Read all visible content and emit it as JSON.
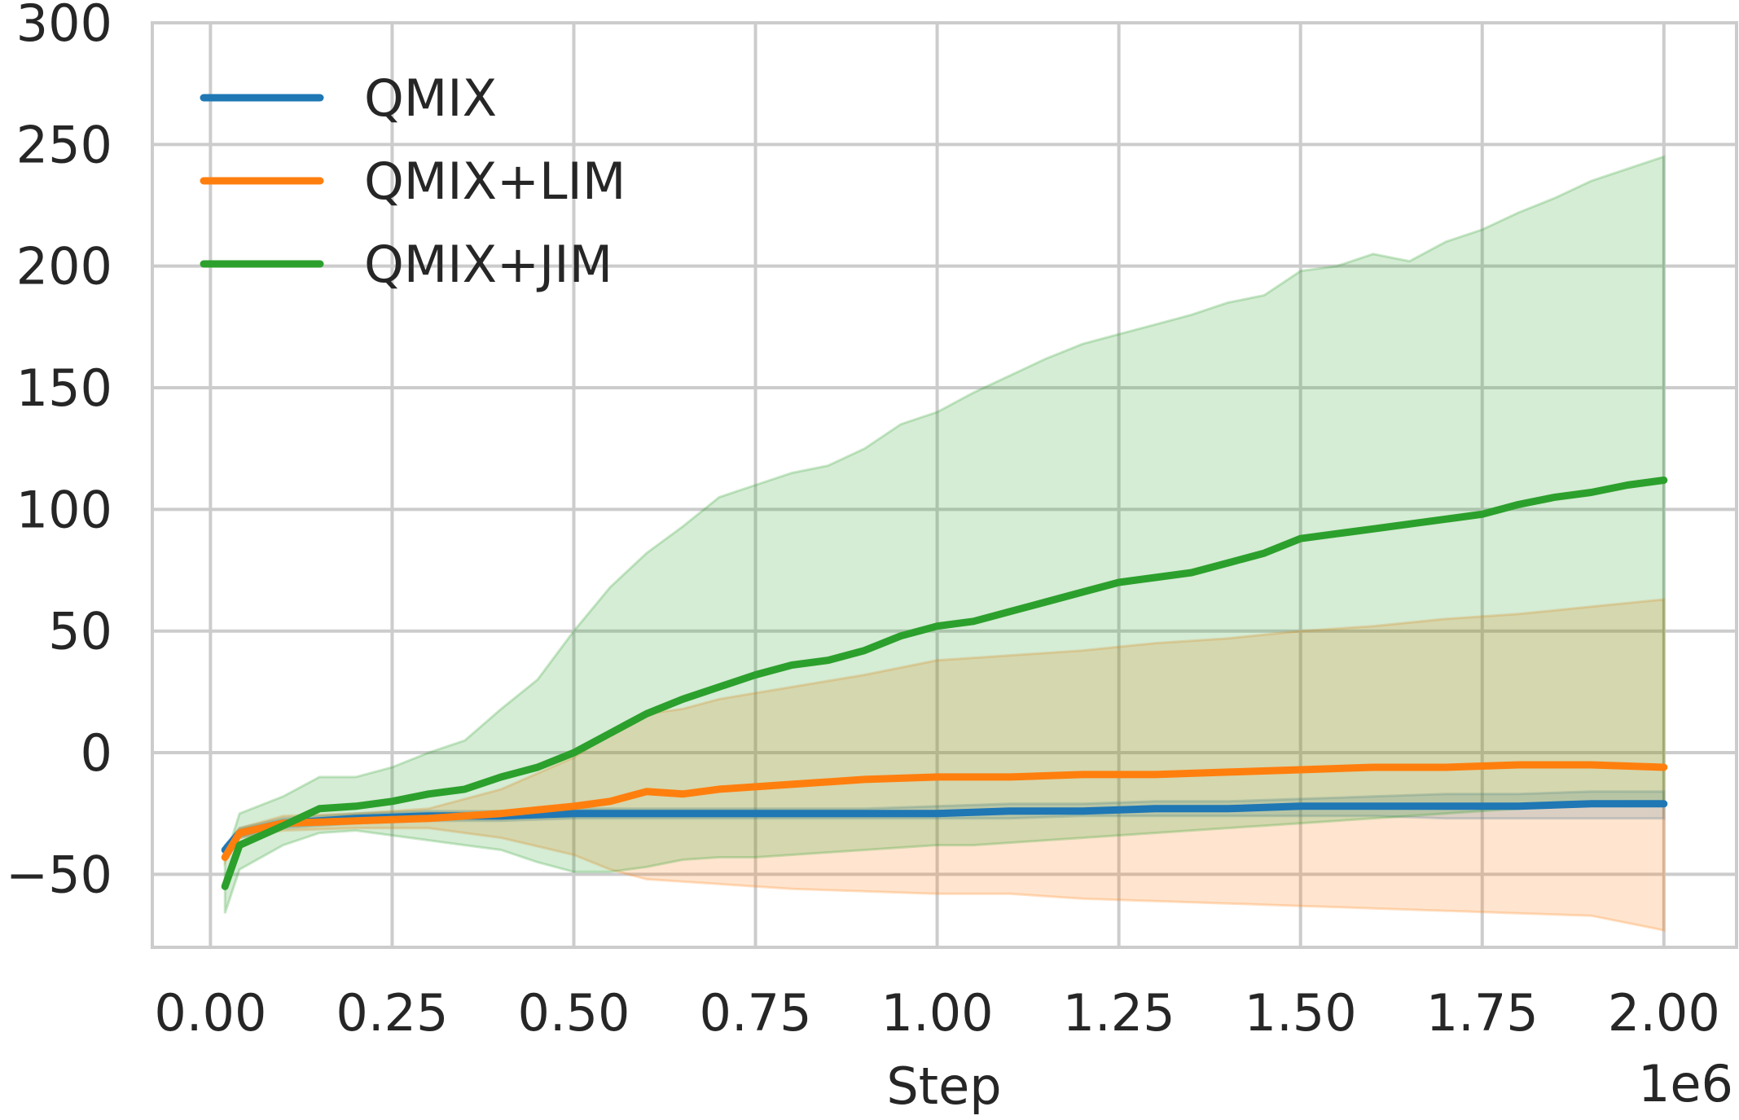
{
  "chart_data": {
    "type": "line",
    "title": "",
    "xlabel": "Step",
    "ylabel": "",
    "x_scale_label": "1e6",
    "xlim": [
      -0.08,
      2.1
    ],
    "ylim": [
      -80,
      300
    ],
    "x_ticks": [
      0.0,
      0.25,
      0.5,
      0.75,
      1.0,
      1.25,
      1.5,
      1.75,
      2.0
    ],
    "x_tick_labels": [
      "0.00",
      "0.25",
      "0.50",
      "0.75",
      "1.00",
      "1.25",
      "1.50",
      "1.75",
      "2.00"
    ],
    "y_ticks": [
      -50,
      0,
      50,
      100,
      150,
      200,
      250,
      300
    ],
    "y_tick_labels": [
      "−50",
      "0",
      "50",
      "100",
      "150",
      "200",
      "250",
      "300"
    ],
    "grid": true,
    "legend_position": "top-left",
    "series": [
      {
        "name": "QMIX",
        "color": "#1f77b4",
        "x": [
          0.02,
          0.04,
          0.1,
          0.2,
          0.3,
          0.4,
          0.5,
          0.6,
          0.7,
          0.8,
          0.9,
          1.0,
          1.1,
          1.2,
          1.3,
          1.4,
          1.5,
          1.6,
          1.7,
          1.8,
          1.9,
          2.0
        ],
        "y": [
          -40,
          -33,
          -29,
          -27,
          -26,
          -26,
          -25,
          -25,
          -25,
          -25,
          -25,
          -25,
          -24,
          -24,
          -23,
          -23,
          -22,
          -22,
          -22,
          -22,
          -21,
          -21
        ],
        "lower": [
          -42,
          -35,
          -31,
          -29,
          -28,
          -28,
          -27,
          -27,
          -27,
          -27,
          -27,
          -27,
          -27,
          -26,
          -26,
          -26,
          -26,
          -26,
          -27,
          -27,
          -27,
          -27
        ],
        "upper": [
          -38,
          -31,
          -27,
          -25,
          -24,
          -24,
          -23,
          -23,
          -23,
          -23,
          -23,
          -22,
          -21,
          -21,
          -20,
          -20,
          -19,
          -18,
          -17,
          -17,
          -16,
          -16
        ]
      },
      {
        "name": "QMIX+LIM",
        "color": "#ff7f0e",
        "x": [
          0.02,
          0.04,
          0.1,
          0.2,
          0.3,
          0.4,
          0.5,
          0.55,
          0.6,
          0.65,
          0.7,
          0.8,
          0.9,
          1.0,
          1.1,
          1.2,
          1.3,
          1.4,
          1.5,
          1.6,
          1.7,
          1.8,
          1.9,
          2.0
        ],
        "y": [
          -43,
          -33,
          -29,
          -28,
          -27,
          -25,
          -22,
          -20,
          -16,
          -17,
          -15,
          -13,
          -11,
          -10,
          -10,
          -9,
          -9,
          -8,
          -7,
          -6,
          -6,
          -5,
          -5,
          -6
        ],
        "lower": [
          -45,
          -35,
          -32,
          -31,
          -31,
          -35,
          -42,
          -48,
          -52,
          -53,
          -54,
          -56,
          -57,
          -58,
          -58,
          -60,
          -61,
          -62,
          -63,
          -64,
          -65,
          -66,
          -67,
          -73
        ],
        "upper": [
          -41,
          -31,
          -26,
          -25,
          -23,
          -15,
          -2,
          8,
          16,
          18,
          22,
          27,
          32,
          38,
          40,
          42,
          45,
          47,
          50,
          52,
          55,
          57,
          60,
          63
        ]
      },
      {
        "name": "QMIX+JIM",
        "color": "#2ca02c",
        "x": [
          0.02,
          0.04,
          0.1,
          0.15,
          0.2,
          0.25,
          0.3,
          0.35,
          0.4,
          0.45,
          0.5,
          0.55,
          0.6,
          0.65,
          0.7,
          0.75,
          0.8,
          0.85,
          0.9,
          0.95,
          1.0,
          1.05,
          1.1,
          1.15,
          1.2,
          1.25,
          1.3,
          1.35,
          1.4,
          1.45,
          1.5,
          1.55,
          1.6,
          1.65,
          1.7,
          1.75,
          1.8,
          1.85,
          1.9,
          1.95,
          2.0
        ],
        "y": [
          -55,
          -38,
          -30,
          -23,
          -22,
          -20,
          -17,
          -15,
          -10,
          -6,
          0,
          8,
          16,
          22,
          27,
          32,
          36,
          38,
          42,
          48,
          52,
          54,
          58,
          62,
          66,
          70,
          72,
          74,
          78,
          82,
          88,
          90,
          92,
          94,
          96,
          98,
          102,
          105,
          107,
          110,
          112
        ],
        "lower": [
          -66,
          -48,
          -38,
          -33,
          -32,
          -34,
          -36,
          -38,
          -40,
          -45,
          -49,
          -49,
          -47,
          -44,
          -43,
          -43,
          -42,
          -41,
          -40,
          -39,
          -38,
          -38,
          -37,
          -36,
          -35,
          -34,
          -33,
          -32,
          -31,
          -30,
          -29,
          -28,
          -27,
          -26,
          -25,
          -24,
          -23,
          -22,
          -21,
          -20,
          -20
        ],
        "upper": [
          -44,
          -25,
          -18,
          -10,
          -10,
          -6,
          0,
          5,
          18,
          30,
          50,
          68,
          82,
          93,
          105,
          110,
          115,
          118,
          125,
          135,
          140,
          148,
          155,
          162,
          168,
          172,
          176,
          180,
          185,
          188,
          198,
          200,
          205,
          202,
          210,
          215,
          222,
          228,
          235,
          240,
          245
        ]
      }
    ]
  }
}
